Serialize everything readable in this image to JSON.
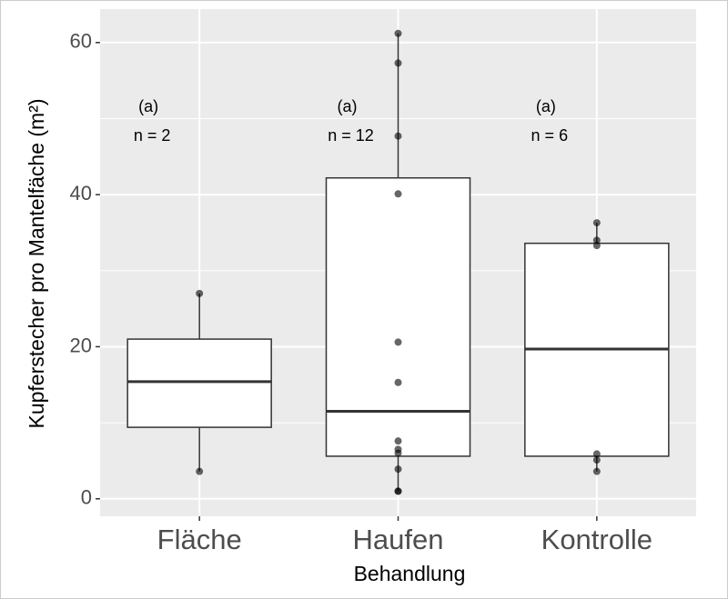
{
  "chart_data": {
    "type": "boxplot",
    "x_label": "Behandlung",
    "y_label": "Kupferstecher pro Mantelfäche (m²)",
    "categories": [
      "Fläche",
      "Haufen",
      "Kontrolle"
    ],
    "boxes": [
      {
        "whisker_low": 3.6,
        "q1": 9.4,
        "median": 15.4,
        "q3": 21.0,
        "whisker_high": 27.0,
        "points": [
          3.6,
          27.0
        ],
        "group": "(a)",
        "n": "n = 2"
      },
      {
        "whisker_low": 1.0,
        "q1": 5.6,
        "median": 11.5,
        "q3": 42.2,
        "whisker_high": 61.2,
        "points": [
          61.2,
          57.3,
          47.7,
          40.1,
          20.6,
          15.3,
          7.6,
          6.5,
          6.0,
          3.9,
          1.0,
          1.0
        ],
        "group": "(a)",
        "n": "n = 12"
      },
      {
        "whisker_low": 3.6,
        "q1": 5.6,
        "median": 19.7,
        "q3": 33.6,
        "whisker_high": 36.3,
        "points": [
          36.3,
          34.0,
          33.3,
          5.9,
          5.1,
          3.6
        ],
        "group": "(a)",
        "n": "n = 6"
      }
    ],
    "ylim": [
      -2.3,
      64.4
    ],
    "yticks": [
      0,
      20,
      40,
      60
    ],
    "y_minor_ticks": [
      10,
      30,
      50
    ],
    "grid": true
  }
}
